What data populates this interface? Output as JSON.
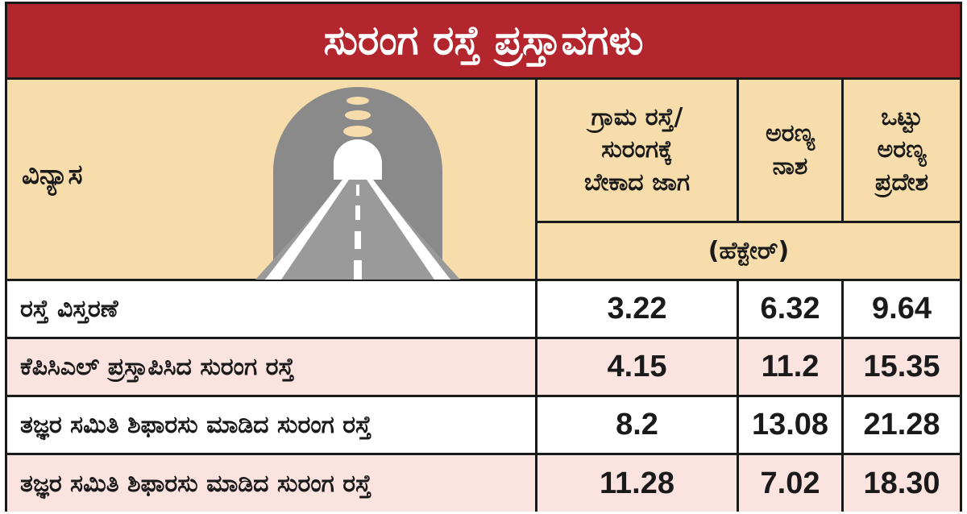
{
  "title": "ಸುರಂಗ ರಸ್ತೆ ಪ್ರಸ್ತಾವಗಳು",
  "header": {
    "design_label": "ವಿನ್ಯಾಸ",
    "col1": "ಗ್ರಾಮ ರಸ್ತೆ/\nಸುರಂಗಕ್ಕೆ\nಬೇಕಾದ ಜಾಗ",
    "col2": "ಅರಣ್ಯ\nನಾಶ",
    "col3": "ಒಟ್ಟು\nಅರಣ್ಯ\nಪ್ರದೇಶ",
    "unit": "(ಹೆಕ್ಟೇರ್)"
  },
  "illustration": "tunnel-road-icon",
  "rows": [
    {
      "name": "ರಸ್ತೆ ವಿಸ್ತರಣೆ",
      "c1": "3.22",
      "c2": "6.32",
      "c3": "9.64"
    },
    {
      "name": "ಕೆಪಿಸಿಎಲ್ ಪ್ರಸ್ತಾಪಿಸಿದ ಸುರಂಗ ರಸ್ತೆ",
      "c1": "4.15",
      "c2": "11.2",
      "c3": "15.35"
    },
    {
      "name": "ತಜ್ಞರ ಸಮಿತಿ ಶಿಫಾರಸು ಮಾಡಿದ ಸುರಂಗ ರಸ್ತೆ",
      "c1": "8.2",
      "c2": "13.08",
      "c3": "21.28"
    },
    {
      "name": "ತಜ್ಞರ ಸಮಿತಿ ಶಿಫಾರಸು ಮಾಡಿದ ಸುರಂಗ ರಸ್ತೆ",
      "c1": "11.28",
      "c2": "7.02",
      "c3": "18.30"
    }
  ],
  "colors": {
    "title_bg": "#b3262d",
    "header_bg": "#f7ddab",
    "alt_row": "#fbe3e0",
    "tunnel": "#8a8a8a"
  }
}
